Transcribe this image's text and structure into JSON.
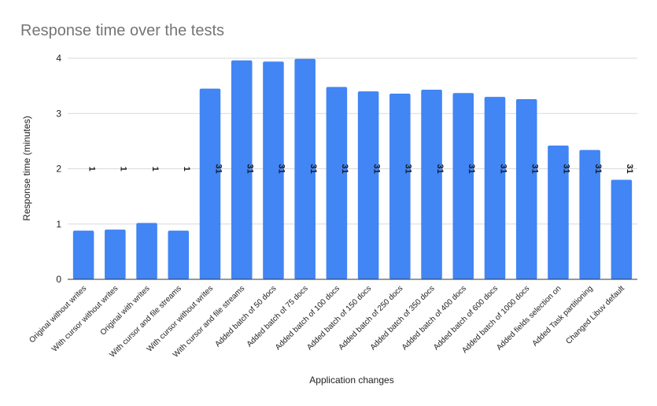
{
  "chart_data": {
    "type": "bar",
    "title": "Response time over the tests",
    "xlabel": "Application changes",
    "ylabel": "Response time (minutes)",
    "ylim": [
      0,
      4
    ],
    "yticks": [
      0,
      1,
      2,
      3,
      4
    ],
    "grid": true,
    "color": "#4285f4",
    "categories": [
      "Original without writes",
      "With cursor without writes",
      "Original with writes",
      "With cursor and file streams",
      "With cursor without writes",
      "With cursor and file streams",
      "Added batch of 50 docs",
      "Added batch of 75 docs",
      "Added batch of 100 docs",
      "Added batch of 150 docs",
      "Added batch of 250 docs",
      "Added batch of 350 docs",
      "Added batch of 400 docs",
      "Added batch of 600 docs",
      "Added batch of 1000 docs",
      "Added fields selection on",
      "Added Task partitioning",
      "Changed Libuv default"
    ],
    "values": [
      0.88,
      0.9,
      1.02,
      0.88,
      3.45,
      3.96,
      3.94,
      3.99,
      3.48,
      3.4,
      3.36,
      3.43,
      3.37,
      3.3,
      3.26,
      2.42,
      2.34,
      1.8
    ],
    "data_labels": [
      "1",
      "1",
      "1",
      "1",
      "31",
      "31",
      "31",
      "31",
      "31",
      "31",
      "31",
      "31",
      "31",
      "31",
      "31",
      "31",
      "31",
      "31"
    ]
  }
}
